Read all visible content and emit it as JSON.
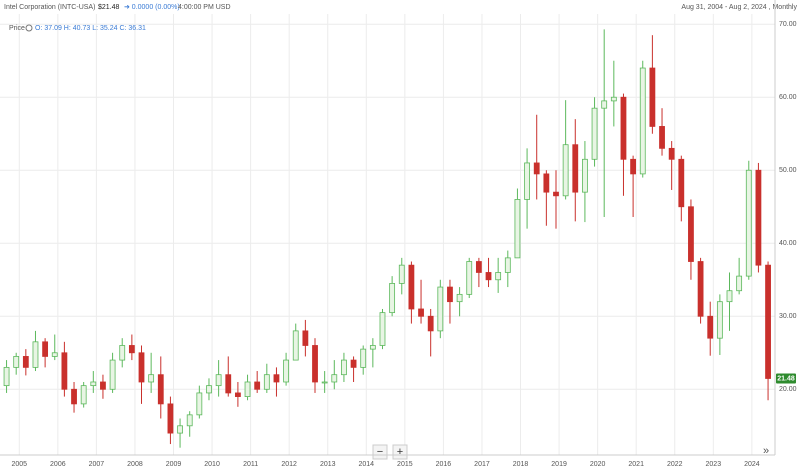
{
  "header": {
    "title": "Intel Corporation (INTC-USA)",
    "price": "$21.48",
    "change": "➜ 0.0000 (0.00%)",
    "time": "4:00:00 PM USD",
    "date_range": "Aug 31, 2004 - Aug 2, 2024 , Monthly"
  },
  "legend": {
    "label": "Price",
    "ohlc": "O: 37.09 H: 40.73 L: 35.24 C: 36.31"
  },
  "controls": {
    "zoom_out": "−",
    "zoom_in": "+",
    "more": "»"
  },
  "chart_data": {
    "type": "candlestick",
    "x": [
      2004.67,
      2004.92,
      2005.17,
      2005.42,
      2005.67,
      2005.92,
      2006.17,
      2006.42,
      2006.67,
      2006.92,
      2007.17,
      2007.42,
      2007.67,
      2007.92,
      2008.17,
      2008.42,
      2008.67,
      2008.92,
      2009.17,
      2009.42,
      2009.67,
      2009.92,
      2010.17,
      2010.42,
      2010.67,
      2010.92,
      2011.17,
      2011.42,
      2011.67,
      2011.92,
      2012.17,
      2012.42,
      2012.67,
      2012.92,
      2013.17,
      2013.42,
      2013.67,
      2013.92,
      2014.17,
      2014.42,
      2014.67,
      2014.92,
      2015.17,
      2015.42,
      2015.67,
      2015.92,
      2016.17,
      2016.42,
      2016.67,
      2016.92,
      2017.17,
      2017.42,
      2017.67,
      2017.92,
      2018.17,
      2018.42,
      2018.67,
      2018.92,
      2019.17,
      2019.42,
      2019.67,
      2019.92,
      2020.17,
      2020.42,
      2020.67,
      2020.92,
      2021.17,
      2021.42,
      2021.67,
      2021.92,
      2022.17,
      2022.42,
      2022.67,
      2022.92,
      2023.17,
      2023.42,
      2023.67,
      2023.92,
      2024.17,
      2024.42
    ],
    "open": [
      20.5,
      23,
      24.5,
      23,
      26.5,
      24.5,
      25,
      20,
      18,
      20.5,
      21,
      20,
      24,
      26,
      25,
      21,
      22,
      18,
      14,
      15,
      16.5,
      19.5,
      20.5,
      22,
      19.5,
      19,
      21,
      20,
      22,
      21,
      24,
      28,
      26,
      21,
      21,
      22,
      24,
      23,
      25.5,
      26,
      30.5,
      34.5,
      37,
      31,
      30,
      28,
      34,
      32,
      33,
      37.5,
      36,
      35,
      36,
      38,
      46,
      51,
      49.5,
      47,
      46.5,
      53.5,
      47,
      51.5,
      58.5,
      59.5,
      60,
      51.5,
      49.5,
      64,
      56,
      53,
      51.5,
      45,
      37.5,
      30,
      27,
      32,
      33.5,
      35.5,
      50,
      37
    ],
    "high": [
      24,
      25,
      25.5,
      28,
      27,
      27.5,
      26.5,
      21,
      21,
      22.5,
      22,
      25,
      27,
      27.5,
      26,
      25,
      24.5,
      19,
      16,
      17,
      20.5,
      21.5,
      24,
      24.5,
      21,
      22,
      22.5,
      23.5,
      23,
      25,
      29,
      29.5,
      27,
      22.5,
      24,
      25,
      24.5,
      26,
      27,
      31,
      35.5,
      38,
      37.5,
      35,
      31,
      35,
      35,
      34,
      38,
      38,
      38,
      38,
      39,
      47.5,
      53,
      57.6,
      50,
      50,
      59.6,
      57,
      54,
      60,
      69.3,
      65,
      60.5,
      52,
      65,
      68.5,
      58.5,
      54,
      52,
      46,
      38,
      32,
      33,
      36,
      38,
      51.3,
      51,
      37.5
    ],
    "low": [
      19.5,
      22,
      21.9,
      22.5,
      23,
      24,
      19,
      16.8,
      17.5,
      19.5,
      18.7,
      19.5,
      23,
      24,
      18,
      19.5,
      16,
      12.5,
      12,
      13.5,
      16,
      18.5,
      19,
      19,
      17.6,
      18.5,
      19.5,
      19.5,
      19,
      20.5,
      24,
      24.5,
      19.5,
      19.5,
      20,
      21,
      21,
      22,
      23,
      25.5,
      30,
      33,
      29,
      29,
      24.5,
      27,
      29,
      30,
      32.5,
      34,
      34,
      33.2,
      34,
      38,
      42,
      46,
      42.4,
      42,
      46,
      43,
      42.9,
      50.5,
      43.6,
      56,
      46.5,
      43.6,
      49,
      55,
      52,
      47.3,
      43,
      35,
      29,
      24.6,
      24.7,
      28,
      33,
      35,
      36,
      18.5
    ],
    "close": [
      23,
      24.5,
      23,
      26.5,
      24.5,
      25,
      20,
      18,
      20.5,
      21,
      20,
      24,
      26,
      25,
      21,
      22,
      18,
      14,
      15,
      16.5,
      19.5,
      20.5,
      22,
      19.5,
      19,
      21,
      20,
      22,
      21,
      24,
      28,
      26,
      21,
      21,
      22,
      24,
      23,
      25.5,
      26,
      30.5,
      34.5,
      37,
      31,
      30,
      28,
      34,
      32,
      33,
      37.5,
      36,
      35,
      36,
      38,
      46,
      51,
      49.5,
      47,
      46.5,
      53.5,
      47,
      51.5,
      58.5,
      59.5,
      60,
      51.5,
      49.5,
      64,
      56,
      53,
      51.5,
      45,
      37.5,
      30,
      27,
      32,
      33.5,
      35.5,
      50,
      37,
      21.48
    ],
    "last_label": "21.48",
    "up_color": "#5cb85c",
    "down_color": "#c9302c",
    "xlim": [
      2004.5,
      2024.6
    ],
    "xticks": [
      2005,
      2006,
      2007,
      2008,
      2009,
      2010,
      2011,
      2012,
      2013,
      2014,
      2015,
      2016,
      2017,
      2018,
      2019,
      2020,
      2021,
      2022,
      2023,
      2024
    ],
    "ylim": [
      11,
      71.4
    ],
    "yticks": [
      {
        "value": 20,
        "label": "20.00"
      },
      {
        "value": 30,
        "label": "30.00"
      },
      {
        "value": 40,
        "label": "40.00"
      },
      {
        "value": 50,
        "label": "50.00"
      },
      {
        "value": 60,
        "label": "60.00"
      },
      {
        "value": 70,
        "label": "70.00"
      }
    ],
    "grid": true
  }
}
